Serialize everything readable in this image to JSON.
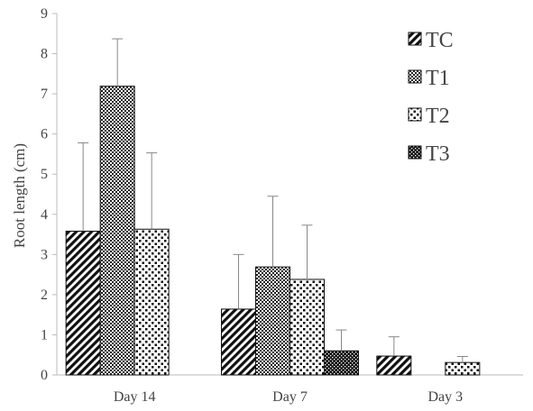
{
  "chart_data": {
    "type": "bar",
    "categories": [
      "Day 14",
      "Day 7",
      "Day 3"
    ],
    "ylabel": "Root length (cm)",
    "xlabel": "",
    "ylim": [
      0,
      9
    ],
    "yticks": [
      "0",
      "1",
      "2",
      "3",
      "4",
      "5",
      "6",
      "7",
      "8",
      "9"
    ],
    "grid": false,
    "legend_position": "top-right",
    "series": [
      {
        "name": "TC",
        "pattern": "diagonal-stripes",
        "values": [
          3.58,
          1.64,
          0.47
        ],
        "errors": [
          2.2,
          1.36,
          0.48
        ]
      },
      {
        "name": "T1",
        "pattern": "crosshatch",
        "values": [
          7.19,
          2.69,
          0
        ],
        "errors": [
          1.18,
          1.76,
          0
        ]
      },
      {
        "name": "T2",
        "pattern": "sparse-dots",
        "values": [
          3.63,
          2.38,
          0.31
        ],
        "errors": [
          1.9,
          1.35,
          0.15
        ]
      },
      {
        "name": "T3",
        "pattern": "dense-dots",
        "values": [
          0,
          0.6,
          0
        ],
        "errors": [
          0,
          0.52,
          0
        ]
      }
    ]
  }
}
